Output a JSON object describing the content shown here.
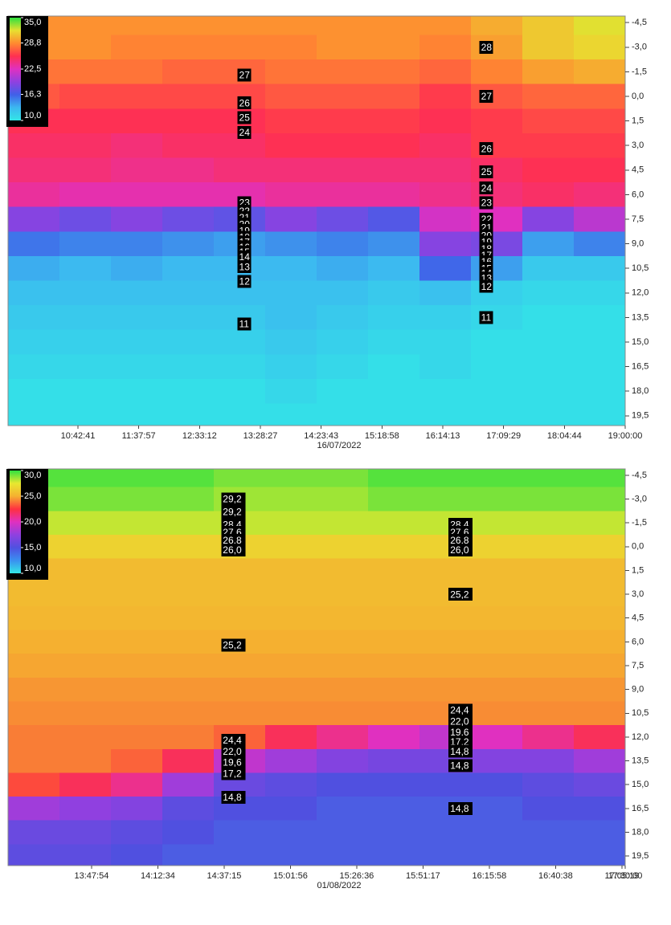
{
  "chart_data": [
    {
      "type": "heatmap",
      "xlabel": "16/07/2022",
      "xlim": [
        -1.15,
        9
      ],
      "xticks": [
        {
          "value": 0,
          "label": "10:42:41"
        },
        {
          "value": 1,
          "label": "11:37:57"
        },
        {
          "value": 2,
          "label": "12:33:12"
        },
        {
          "value": 3,
          "label": "13:28:27"
        },
        {
          "value": 4,
          "label": "14:23:43"
        },
        {
          "value": 5,
          "label": "15:18:58"
        },
        {
          "value": 6,
          "label": "16:14:13"
        },
        {
          "value": 7,
          "label": "17:09:29"
        },
        {
          "value": 8,
          "label": "18:04:44"
        },
        {
          "value": 9,
          "label": "19:00:00"
        }
      ],
      "ylim": [
        -4.9,
        20.1
      ],
      "yticks": [
        {
          "value": -4.5,
          "label": "-4,5"
        },
        {
          "value": -3,
          "label": "-3,0"
        },
        {
          "value": -1.5,
          "label": "-1,5"
        },
        {
          "value": 0,
          "label": "0,0"
        },
        {
          "value": 1.5,
          "label": "1,5"
        },
        {
          "value": 3,
          "label": "3,0"
        },
        {
          "value": 4.5,
          "label": "4,5"
        },
        {
          "value": 6,
          "label": "6,0"
        },
        {
          "value": 7.5,
          "label": "7,5"
        },
        {
          "value": 9,
          "label": "9,0"
        },
        {
          "value": 10.5,
          "label": "10,5"
        },
        {
          "value": 12,
          "label": "12,0"
        },
        {
          "value": 13.5,
          "label": "13,5"
        },
        {
          "value": 15,
          "label": "15,0"
        },
        {
          "value": 16.5,
          "label": "16,5"
        },
        {
          "value": 18,
          "label": "18,0"
        },
        {
          "value": 19.5,
          "label": "19,5"
        }
      ],
      "colorbar_ticks": [
        {
          "value": 35,
          "label": "35,0"
        },
        {
          "value": 28.8,
          "label": "28,8"
        },
        {
          "value": 22.5,
          "label": "22,5"
        },
        {
          "value": 16.3,
          "label": "16,3"
        },
        {
          "value": 10,
          "label": "10,0"
        }
      ],
      "zlim": [
        10,
        35
      ],
      "colormap": [
        "#33e6e6",
        "#3cb8f0",
        "#4060e8",
        "#9040e0",
        "#e030c0",
        "#ff3050",
        "#ff8a30",
        "#e8e030",
        "#30e040"
      ],
      "z": [
        [
          29,
          29,
          29,
          29,
          29,
          29,
          29,
          29,
          29,
          30,
          31,
          32
        ],
        [
          29,
          29,
          28.5,
          28.5,
          28.5,
          28.5,
          29,
          29,
          28.5,
          29.5,
          31,
          31.5
        ],
        [
          28,
          28,
          28,
          27.5,
          27.5,
          28,
          28,
          28,
          27.5,
          28.5,
          29.5,
          30
        ],
        [
          27,
          26.5,
          26.5,
          26.5,
          26.5,
          27,
          27,
          27,
          26,
          27,
          27.5,
          27.5
        ],
        [
          25.5,
          25.5,
          25.5,
          25.5,
          25.5,
          26,
          26,
          26,
          25.5,
          26,
          26.5,
          26.5
        ],
        [
          25,
          25,
          24.5,
          25,
          25,
          25.5,
          25.5,
          25.5,
          25,
          26,
          26,
          26
        ],
        [
          24.5,
          24.5,
          24,
          24,
          24.5,
          24.5,
          24.5,
          24.5,
          24.5,
          25,
          25.5,
          25.5
        ],
        [
          23.5,
          23,
          23,
          23,
          23,
          23.5,
          23.5,
          23.5,
          24,
          24.5,
          25,
          24.5
        ],
        [
          19,
          18,
          19,
          18,
          17.5,
          19,
          18,
          17,
          22,
          22.5,
          19,
          21
        ],
        [
          15.5,
          15,
          15,
          14.5,
          14,
          14.5,
          15,
          14.5,
          19,
          18.5,
          14,
          15
        ],
        [
          13.5,
          13,
          13.5,
          13,
          13,
          13,
          13.5,
          13,
          16,
          14,
          12,
          12
        ],
        [
          12.5,
          12.5,
          12.5,
          12.5,
          12.5,
          12.5,
          12.5,
          12,
          12.5,
          11.5,
          11,
          11
        ],
        [
          12,
          12,
          12,
          12,
          12,
          12.5,
          12,
          11.5,
          11.5,
          11,
          10.5,
          10.5
        ],
        [
          11.5,
          11.5,
          11.5,
          11.5,
          11.5,
          12,
          11.5,
          11,
          11,
          10.5,
          10.5,
          10.5
        ],
        [
          11,
          11,
          11,
          11,
          11,
          11.5,
          11,
          10.5,
          11,
          10.5,
          10.5,
          10.5
        ],
        [
          10.5,
          10.5,
          10.5,
          10.5,
          10.5,
          11,
          10.5,
          10.5,
          10.5,
          10.5,
          10.5,
          10.5
        ],
        [
          10.5,
          10.5,
          10.5,
          10.5,
          10.5,
          10.5,
          10.5,
          10.5,
          10.5,
          10.5,
          10.5,
          10.5
        ]
      ],
      "contour_labels": [
        {
          "text": "27",
          "x": 2.65,
          "y": -1.3
        },
        {
          "text": "26",
          "x": 2.65,
          "y": 0.4
        },
        {
          "text": "25",
          "x": 2.65,
          "y": 1.3
        },
        {
          "text": "24",
          "x": 2.65,
          "y": 2.2
        },
        {
          "text": "23",
          "x": 2.65,
          "y": 6.5
        },
        {
          "text": "22",
          "x": 2.65,
          "y": 7.0
        },
        {
          "text": "21",
          "x": 2.65,
          "y": 7.4
        },
        {
          "text": "20",
          "x": 2.65,
          "y": 7.8
        },
        {
          "text": "19",
          "x": 2.65,
          "y": 8.2
        },
        {
          "text": "18",
          "x": 2.65,
          "y": 8.6
        },
        {
          "text": "17",
          "x": 2.65,
          "y": 8.9
        },
        {
          "text": "16",
          "x": 2.65,
          "y": 9.2
        },
        {
          "text": "15",
          "x": 2.65,
          "y": 9.5
        },
        {
          "text": "14",
          "x": 2.65,
          "y": 9.8
        },
        {
          "text": "13",
          "x": 2.65,
          "y": 10.4
        },
        {
          "text": "12",
          "x": 2.65,
          "y": 11.3
        },
        {
          "text": "11",
          "x": 2.65,
          "y": 13.9
        },
        {
          "text": "28",
          "x": 6.63,
          "y": -3.0
        },
        {
          "text": "27",
          "x": 6.63,
          "y": 0.0
        },
        {
          "text": "26",
          "x": 6.63,
          "y": 3.2
        },
        {
          "text": "25",
          "x": 6.63,
          "y": 4.6
        },
        {
          "text": "24",
          "x": 6.63,
          "y": 5.6
        },
        {
          "text": "23",
          "x": 6.63,
          "y": 6.5
        },
        {
          "text": "22",
          "x": 6.63,
          "y": 7.5
        },
        {
          "text": "21",
          "x": 6.63,
          "y": 8.0
        },
        {
          "text": "20",
          "x": 6.63,
          "y": 8.5
        },
        {
          "text": "19",
          "x": 6.63,
          "y": 8.9
        },
        {
          "text": "18",
          "x": 6.63,
          "y": 9.3
        },
        {
          "text": "17",
          "x": 6.63,
          "y": 9.7
        },
        {
          "text": "16",
          "x": 6.63,
          "y": 10.1
        },
        {
          "text": "15",
          "x": 6.63,
          "y": 10.5
        },
        {
          "text": "14",
          "x": 6.63,
          "y": 10.8
        },
        {
          "text": "13",
          "x": 6.63,
          "y": 11.1
        },
        {
          "text": "12",
          "x": 6.63,
          "y": 11.6
        },
        {
          "text": "11",
          "x": 6.63,
          "y": 13.5
        }
      ]
    },
    {
      "type": "heatmap",
      "xlabel": "01/08/2022",
      "xlim": [
        -1.26,
        8.05
      ],
      "xticks": [
        {
          "value": 0,
          "label": "13:47:54"
        },
        {
          "value": 1,
          "label": "14:12:34"
        },
        {
          "value": 2,
          "label": "14:37:15"
        },
        {
          "value": 3,
          "label": "15:01:56"
        },
        {
          "value": 4,
          "label": "15:26:36"
        },
        {
          "value": 5,
          "label": "15:51:17"
        },
        {
          "value": 6,
          "label": "16:15:58"
        },
        {
          "value": 7,
          "label": "16:40:38"
        },
        {
          "value": 8,
          "label": "17:05:19"
        },
        {
          "value": 9,
          "label": "17:30:00"
        }
      ],
      "ylim": [
        -4.9,
        20.1
      ],
      "yticks": [
        {
          "value": -4.5,
          "label": "-4,5"
        },
        {
          "value": -3,
          "label": "-3,0"
        },
        {
          "value": -1.5,
          "label": "-1,5"
        },
        {
          "value": 0,
          "label": "0,0"
        },
        {
          "value": 1.5,
          "label": "1,5"
        },
        {
          "value": 3,
          "label": "3,0"
        },
        {
          "value": 4.5,
          "label": "4,5"
        },
        {
          "value": 6,
          "label": "6,0"
        },
        {
          "value": 7.5,
          "label": "7,5"
        },
        {
          "value": 9,
          "label": "9,0"
        },
        {
          "value": 10.5,
          "label": "10,5"
        },
        {
          "value": 12,
          "label": "12,0"
        },
        {
          "value": 13.5,
          "label": "13,5"
        },
        {
          "value": 15,
          "label": "15,0"
        },
        {
          "value": 16.5,
          "label": "16,5"
        },
        {
          "value": 18,
          "label": "18,0"
        },
        {
          "value": 19.5,
          "label": "19,5"
        }
      ],
      "colorbar_ticks": [
        {
          "value": 30,
          "label": "30,0"
        },
        {
          "value": 25,
          "label": "25,0"
        },
        {
          "value": 20,
          "label": "20,0"
        },
        {
          "value": 15,
          "label": "15,0"
        },
        {
          "value": 10,
          "label": "10,0"
        }
      ],
      "zlim": [
        10,
        30
      ],
      "colormap": [
        "#33e6e6",
        "#3a90f0",
        "#5050e0",
        "#9040e0",
        "#e030c0",
        "#ff3040",
        "#f5b030",
        "#e8e830",
        "#30e040"
      ],
      "z": [
        [
          29.5,
          29.5,
          29.5,
          29.5,
          29,
          29,
          29,
          29.5,
          29.5,
          29.5,
          29.5,
          29.5
        ],
        [
          29,
          29,
          29,
          29,
          28.5,
          28.5,
          28.5,
          29,
          29,
          29,
          29,
          29
        ],
        [
          28,
          28,
          28,
          28,
          28,
          28,
          28,
          28,
          28,
          28,
          28,
          28
        ],
        [
          26.5,
          26.5,
          26.5,
          26.5,
          26.5,
          26.5,
          26.5,
          26.5,
          26.5,
          26.5,
          26.5,
          26.5
        ],
        [
          25.5,
          25.5,
          25.5,
          25.5,
          25.5,
          25.5,
          25.5,
          25.5,
          25.5,
          25.5,
          25.5,
          25.5
        ],
        [
          25.5,
          25.5,
          25.5,
          25.5,
          25.5,
          25.5,
          25.5,
          25.5,
          25.5,
          25.5,
          25.5,
          25.5
        ],
        [
          25.3,
          25.3,
          25.3,
          25.3,
          25.3,
          25.3,
          25.3,
          25.3,
          25.3,
          25.3,
          25.3,
          25.3
        ],
        [
          25,
          25,
          25,
          25,
          25,
          25,
          25,
          25,
          25,
          25,
          25,
          25
        ],
        [
          24.8,
          24.8,
          24.8,
          24.8,
          24.8,
          24.8,
          24.8,
          24.8,
          24.8,
          24.8,
          24.8,
          24.8
        ],
        [
          24.5,
          24.5,
          24.5,
          24.5,
          24.5,
          24.5,
          24.5,
          24.5,
          24.5,
          24.5,
          24.5,
          24.5
        ],
        [
          24.3,
          24.3,
          24.3,
          24.3,
          24.3,
          24.3,
          24.3,
          24.3,
          24.3,
          24.3,
          24.3,
          24.3
        ],
        [
          24,
          24,
          24,
          24,
          23.5,
          22,
          21,
          20,
          19,
          20,
          21,
          22
        ],
        [
          24,
          24,
          23.5,
          22,
          19,
          18,
          17,
          16.5,
          16.5,
          17,
          17,
          18
        ],
        [
          23,
          22,
          21,
          18,
          16,
          15.5,
          15,
          15,
          15,
          15,
          15.5,
          16
        ],
        [
          18,
          17.5,
          17,
          15.5,
          15,
          15,
          14.5,
          14.5,
          14.5,
          14.5,
          15,
          15
        ],
        [
          16,
          16,
          15.5,
          15,
          14.5,
          14.5,
          14.5,
          14.5,
          14.5,
          14.5,
          14.5,
          14.5
        ],
        [
          15.5,
          15.5,
          15,
          14.5,
          14.5,
          14.5,
          14.5,
          14.5,
          14.5,
          14.5,
          14.5,
          14.5
        ]
      ],
      "contour_labels": [
        {
          "text": "29,2",
          "x": 1.98,
          "y": -3.0
        },
        {
          "text": "29,2",
          "x": 1.98,
          "y": -2.2
        },
        {
          "text": "28,4",
          "x": 1.98,
          "y": -1.4
        },
        {
          "text": "27,6",
          "x": 1.98,
          "y": -0.9
        },
        {
          "text": "26,8",
          "x": 1.98,
          "y": -0.4
        },
        {
          "text": "26,0",
          "x": 1.98,
          "y": 0.2
        },
        {
          "text": "25,2",
          "x": 1.98,
          "y": 6.2
        },
        {
          "text": "24,4",
          "x": 1.98,
          "y": 12.2
        },
        {
          "text": "22,0",
          "x": 1.98,
          "y": 12.9
        },
        {
          "text": "19,6",
          "x": 1.98,
          "y": 13.6
        },
        {
          "text": "17,2",
          "x": 1.98,
          "y": 14.3
        },
        {
          "text": "14,8",
          "x": 1.98,
          "y": 15.8
        },
        {
          "text": "28,4",
          "x": 5.41,
          "y": -1.4
        },
        {
          "text": "27,6",
          "x": 5.41,
          "y": -0.9
        },
        {
          "text": "26,8",
          "x": 5.41,
          "y": -0.4
        },
        {
          "text": "26,0",
          "x": 5.41,
          "y": 0.2
        },
        {
          "text": "25,2",
          "x": 5.41,
          "y": 3.0
        },
        {
          "text": "24,4",
          "x": 5.41,
          "y": 10.3
        },
        {
          "text": "22,0",
          "x": 5.41,
          "y": 11.0
        },
        {
          "text": "19,6",
          "x": 5.41,
          "y": 11.7
        },
        {
          "text": "17,2",
          "x": 5.41,
          "y": 12.3
        },
        {
          "text": "14,8",
          "x": 5.41,
          "y": 12.9
        },
        {
          "text": "14,8",
          "x": 5.41,
          "y": 13.8
        },
        {
          "text": "14,8",
          "x": 5.41,
          "y": 16.5
        }
      ]
    }
  ]
}
